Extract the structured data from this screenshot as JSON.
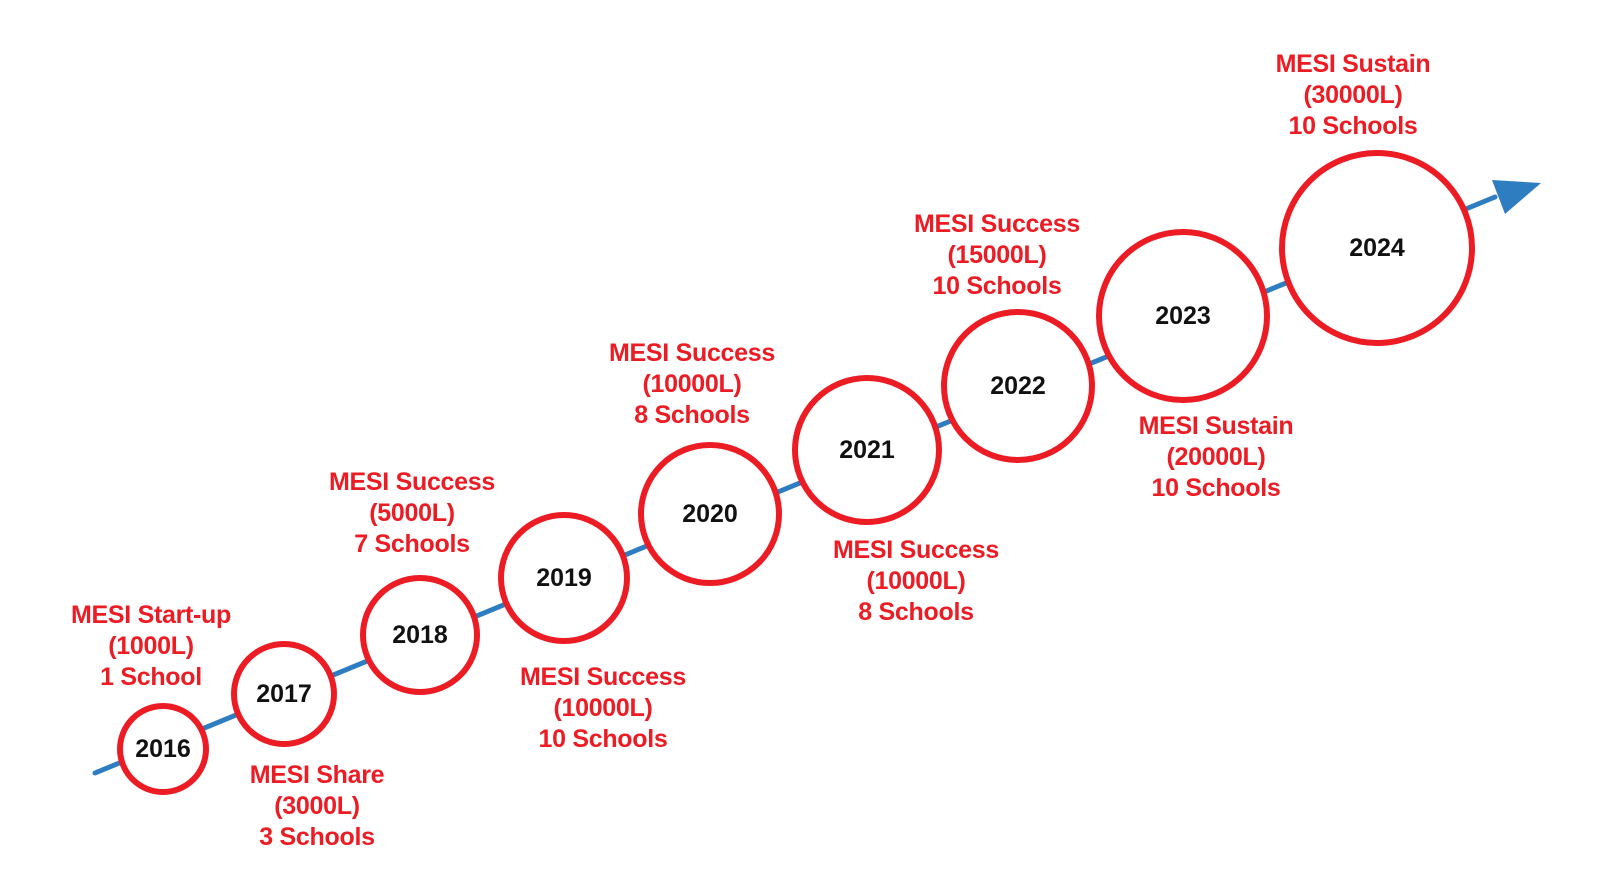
{
  "colors": {
    "arrow": "#2e7dc1",
    "circle_stroke": "#ec1c24",
    "milestone_text": "#ec1c24",
    "year_text": "#111111"
  },
  "timeline": [
    {
      "year": "2016",
      "title": "MESI Start-up",
      "volume": "(1000L)",
      "schools": "1 School"
    },
    {
      "year": "2017",
      "title": "MESI Share",
      "volume": "(3000L)",
      "schools": "3 Schools"
    },
    {
      "year": "2018",
      "title": "MESI Success",
      "volume": "(5000L)",
      "schools": "7 Schools"
    },
    {
      "year": "2019",
      "title": "MESI Success",
      "volume": "(10000L)",
      "schools": "10 Schools"
    },
    {
      "year": "2020",
      "title": "MESI Success",
      "volume": "(10000L)",
      "schools": "8 Schools"
    },
    {
      "year": "2021",
      "title": "MESI Success",
      "volume": "(10000L)",
      "schools": "8 Schools"
    },
    {
      "year": "2022",
      "title": "MESI Success",
      "volume": "(15000L)",
      "schools": "10 Schools"
    },
    {
      "year": "2023",
      "title": "MESI Sustain",
      "volume": "(20000L)",
      "schools": "10 Schools"
    },
    {
      "year": "2024",
      "title": "MESI Sustain",
      "volume": "(30000L)",
      "schools": "10 Schools"
    }
  ]
}
